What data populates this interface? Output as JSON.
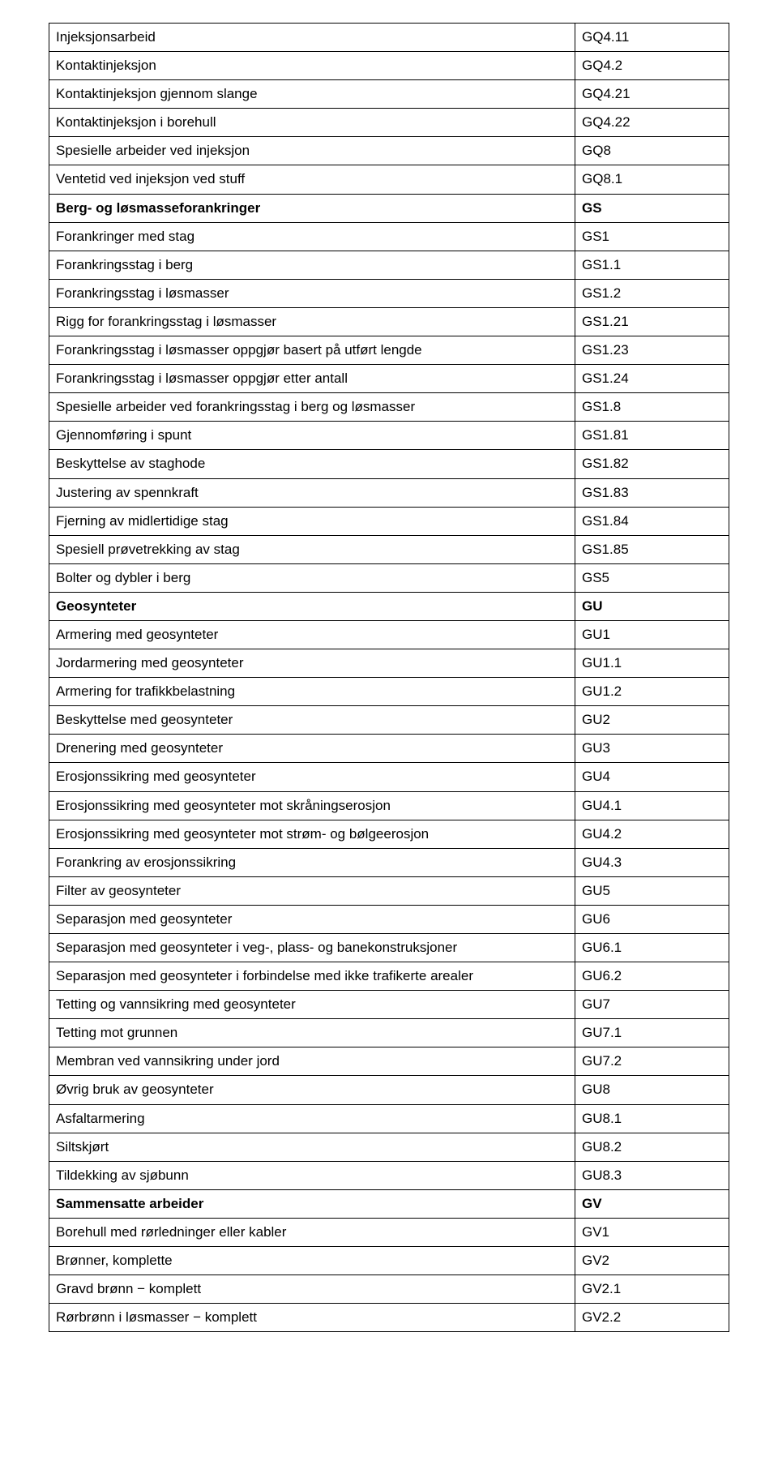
{
  "table": {
    "rows": [
      {
        "label": "Injeksjonsarbeid",
        "code": "GQ4.11",
        "bold": false
      },
      {
        "label": "Kontaktinjeksjon",
        "code": "GQ4.2",
        "bold": false
      },
      {
        "label": "Kontaktinjeksjon gjennom slange",
        "code": "GQ4.21",
        "bold": false
      },
      {
        "label": "Kontaktinjeksjon i borehull",
        "code": "GQ4.22",
        "bold": false
      },
      {
        "label": "Spesielle arbeider ved injeksjon",
        "code": "GQ8",
        "bold": false
      },
      {
        "label": "Ventetid ved injeksjon ved stuff",
        "code": "GQ8.1",
        "bold": false
      },
      {
        "label": "Berg- og løsmasseforankringer",
        "code": "GS",
        "bold": true
      },
      {
        "label": "Forankringer med stag",
        "code": "GS1",
        "bold": false
      },
      {
        "label": "Forankringsstag i berg",
        "code": "GS1.1",
        "bold": false
      },
      {
        "label": "Forankringsstag i løsmasser",
        "code": "GS1.2",
        "bold": false
      },
      {
        "label": "Rigg for forankringsstag i løsmasser",
        "code": "GS1.21",
        "bold": false
      },
      {
        "label": "Forankringsstag i løsmasser oppgjør basert på utført lengde",
        "code": "GS1.23",
        "bold": false
      },
      {
        "label": "Forankringsstag i løsmasser oppgjør etter antall",
        "code": "GS1.24",
        "bold": false
      },
      {
        "label": "Spesielle arbeider ved forankringsstag i berg og løsmasser",
        "code": "GS1.8",
        "bold": false
      },
      {
        "label": "Gjennomføring i spunt",
        "code": "GS1.81",
        "bold": false
      },
      {
        "label": "Beskyttelse av staghode",
        "code": "GS1.82",
        "bold": false
      },
      {
        "label": "Justering av spennkraft",
        "code": "GS1.83",
        "bold": false
      },
      {
        "label": "Fjerning av midlertidige stag",
        "code": "GS1.84",
        "bold": false
      },
      {
        "label": "Spesiell prøvetrekking av stag",
        "code": "GS1.85",
        "bold": false
      },
      {
        "label": "Bolter og dybler i berg",
        "code": "GS5",
        "bold": false
      },
      {
        "label": "Geosynteter",
        "code": "GU",
        "bold": true
      },
      {
        "label": "Armering med geosynteter",
        "code": "GU1",
        "bold": false
      },
      {
        "label": "Jordarmering med geosynteter",
        "code": "GU1.1",
        "bold": false
      },
      {
        "label": "Armering for trafikkbelastning",
        "code": "GU1.2",
        "bold": false
      },
      {
        "label": "Beskyttelse med geosynteter",
        "code": "GU2",
        "bold": false
      },
      {
        "label": "Drenering med geosynteter",
        "code": "GU3",
        "bold": false
      },
      {
        "label": "Erosjonssikring med geosynteter",
        "code": "GU4",
        "bold": false
      },
      {
        "label": "Erosjonssikring med geosynteter mot skråningserosjon",
        "code": "GU4.1",
        "bold": false
      },
      {
        "label": "Erosjonssikring med geosynteter mot strøm- og bølgeerosjon",
        "code": "GU4.2",
        "bold": false
      },
      {
        "label": "Forankring av erosjonssikring",
        "code": "GU4.3",
        "bold": false
      },
      {
        "label": "Filter av geosynteter",
        "code": "GU5",
        "bold": false
      },
      {
        "label": "Separasjon med geosynteter",
        "code": "GU6",
        "bold": false
      },
      {
        "label": "Separasjon med geosynteter i veg-, plass- og banekonstruksjoner",
        "code": "GU6.1",
        "bold": false
      },
      {
        "label": "Separasjon med geosynteter i forbindelse med ikke trafikerte arealer",
        "code": "GU6.2",
        "bold": false
      },
      {
        "label": "Tetting og vannsikring med geosynteter",
        "code": "GU7",
        "bold": false
      },
      {
        "label": "Tetting mot grunnen",
        "code": "GU7.1",
        "bold": false
      },
      {
        "label": "Membran ved vannsikring under jord",
        "code": "GU7.2",
        "bold": false
      },
      {
        "label": "Øvrig bruk av geosynteter",
        "code": "GU8",
        "bold": false
      },
      {
        "label": "Asfaltarmering",
        "code": "GU8.1",
        "bold": false
      },
      {
        "label": "Siltskjørt",
        "code": "GU8.2",
        "bold": false
      },
      {
        "label": "Tildekking av sjøbunn",
        "code": "GU8.3",
        "bold": false
      },
      {
        "label": "Sammensatte arbeider",
        "code": "GV",
        "bold": true
      },
      {
        "label": "Borehull med rørledninger eller kabler",
        "code": "GV1",
        "bold": false
      },
      {
        "label": "Brønner, komplette",
        "code": "GV2",
        "bold": false
      },
      {
        "label": "Gravd brønn − komplett",
        "code": "GV2.1",
        "bold": false
      },
      {
        "label": "Rørbrønn i løsmasser − komplett",
        "code": "GV2.2",
        "bold": false
      }
    ]
  }
}
